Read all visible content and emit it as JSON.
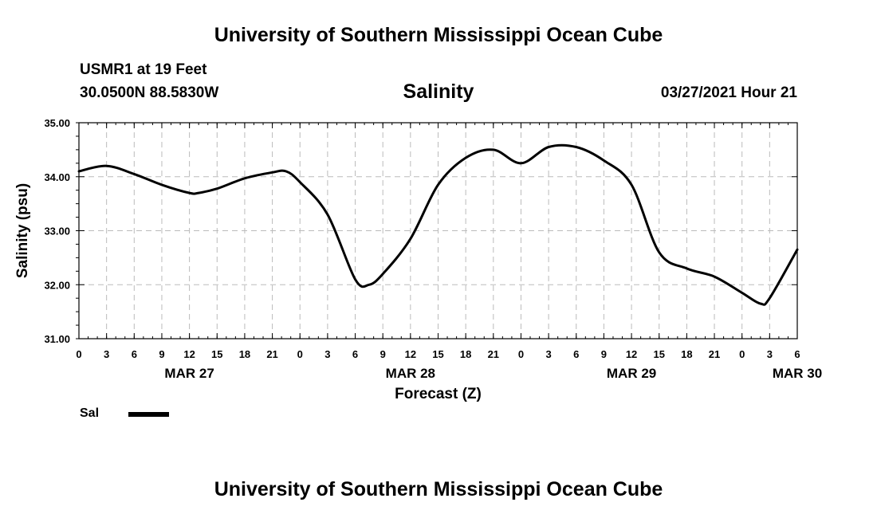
{
  "header": {
    "title_top": "University of Southern Mississippi Ocean Cube",
    "station": "USMR1 at 19 Feet",
    "coords": "30.0500N  88.5830W",
    "chart_title": "Salinity",
    "datetime": "03/27/2021 Hour 21",
    "title_bottom": "University of Southern Mississippi Ocean Cube"
  },
  "legend": {
    "label": "Sal",
    "color": "#000000"
  },
  "chart_data": {
    "type": "line",
    "title": "Salinity",
    "xlabel": "Forecast (Z)",
    "ylabel": "Salinity (psu)",
    "ylim": [
      31.0,
      35.0
    ],
    "xlim": [
      0,
      78
    ],
    "grid": true,
    "y_ticks": [
      "31.00",
      "32.00",
      "33.00",
      "34.00",
      "35.00"
    ],
    "x_tick_labels": [
      "0",
      "3",
      "6",
      "9",
      "12",
      "15",
      "18",
      "21",
      "0",
      "3",
      "6",
      "9",
      "12",
      "15",
      "18",
      "21",
      "0",
      "3",
      "6",
      "9",
      "12",
      "15",
      "18",
      "21",
      "0",
      "3",
      "6"
    ],
    "date_labels": [
      {
        "label": "MAR 27",
        "hour": 12
      },
      {
        "label": "MAR 28",
        "hour": 36
      },
      {
        "label": "MAR 29",
        "hour": 60
      },
      {
        "label": "MAR 30",
        "hour": 78
      }
    ],
    "series": [
      {
        "name": "Sal",
        "x": [
          0,
          3,
          6,
          9,
          12,
          13,
          15,
          18,
          21,
          22.5,
          24,
          27,
          30,
          31.5,
          33,
          36,
          39,
          42,
          45,
          48,
          51,
          54,
          57,
          60,
          63,
          66,
          69,
          72,
          74,
          75,
          78
        ],
        "values": [
          34.1,
          34.2,
          34.05,
          33.85,
          33.7,
          33.7,
          33.78,
          33.97,
          34.08,
          34.1,
          33.9,
          33.3,
          32.1,
          32.0,
          32.2,
          32.85,
          33.85,
          34.35,
          34.5,
          34.25,
          34.55,
          34.55,
          34.3,
          33.85,
          32.6,
          32.3,
          32.15,
          31.85,
          31.65,
          31.75,
          32.65
        ]
      }
    ]
  }
}
